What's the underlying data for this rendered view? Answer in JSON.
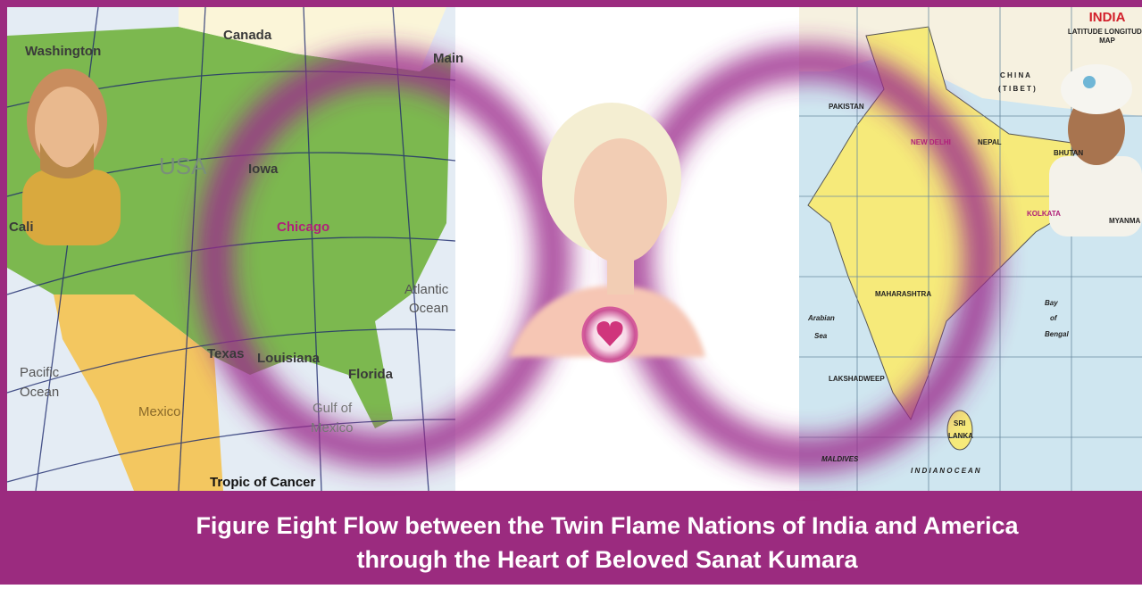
{
  "caption": {
    "lines": [
      "Figure Eight Flow between the Twin Flame Nations of India and America",
      "through the Heart of Beloved Sanat Kumara"
    ]
  },
  "left_map": {
    "labels": [
      "Canada",
      "Washington",
      "Main",
      "USA",
      "Iowa",
      "Chicago",
      "Cali",
      "Atlantic",
      "Ocean",
      "Pacific",
      "Ocean",
      "Texas",
      "Louisiana",
      "Florida",
      "Gulf of",
      "Mexico",
      "Mexico",
      "Tropic of Cancer"
    ]
  },
  "right_map": {
    "title": "INDIA",
    "subtitle": [
      "LATITUDE LONGITUDE",
      "MAP"
    ],
    "labels": [
      "C H I N A",
      "( T I B E T )",
      "PAKISTAN",
      "NEW DELHI",
      "NEPAL",
      "BHUTAN",
      "KOLKATA",
      "MYANMA",
      "MAHARASHTRA",
      "Arabian",
      "Sea",
      "Bay",
      "of",
      "Bengal",
      "LAKSHADWEEP",
      "SRI",
      "LANKA",
      "MALDIVES",
      "I N D I A N   O C E A N"
    ]
  }
}
